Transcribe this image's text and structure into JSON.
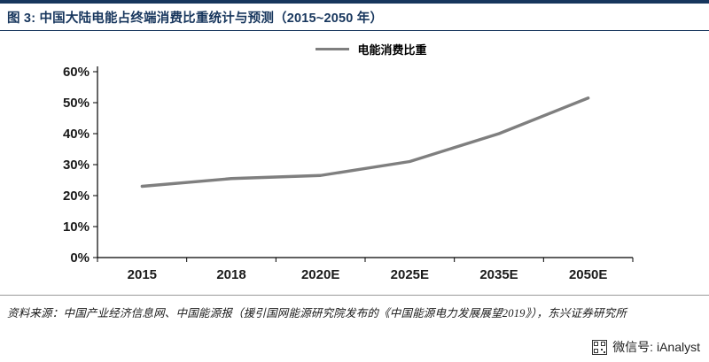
{
  "header": {
    "title": "图 3: 中国大陆电能占终端消费比重统计与预测（2015~2050 年）"
  },
  "chart_data": {
    "type": "line",
    "title": "图 3: 中国大陆电能占终端消费比重统计与预测（2015~2050 年）",
    "categories": [
      "2015",
      "2018",
      "2020E",
      "2025E",
      "2035E",
      "2050E"
    ],
    "series": [
      {
        "name": "电能消费比重",
        "values": [
          23,
          25.5,
          26.5,
          31,
          40,
          51.5
        ],
        "color": "#7f7f7f"
      }
    ],
    "ylim": [
      0,
      60
    ],
    "ytick_step": 10,
    "ytick_suffix": "%",
    "yticks": [
      "0%",
      "10%",
      "20%",
      "30%",
      "40%",
      "50%",
      "60%"
    ],
    "grid": false,
    "legend_position": "top",
    "xlabel": "",
    "ylabel": ""
  },
  "footer": {
    "source": "资料来源：中国产业经济信息网、中国能源报（援引国网能源研究院发布的《中国能源电力发展展望2019》），东兴证券研究所",
    "wechat": "微信号: iAnalyst"
  },
  "colors": {
    "title_navy": "#17365d",
    "line_gray": "#7f7f7f",
    "axis_black": "#000000"
  }
}
